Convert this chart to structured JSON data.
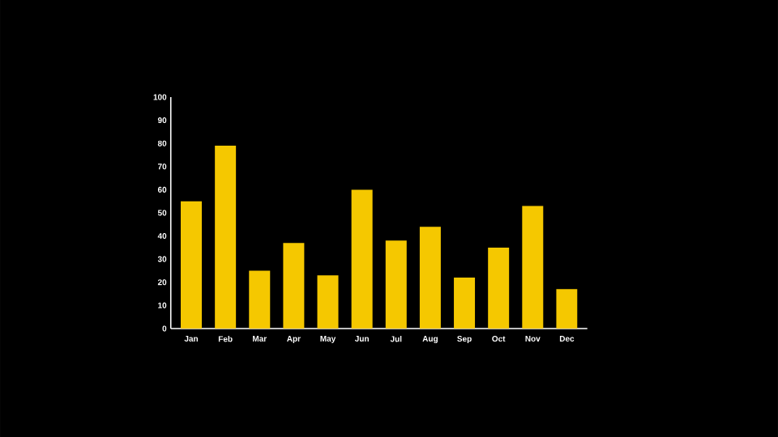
{
  "chart_data": {
    "type": "bar",
    "categories": [
      "Jan",
      "Feb",
      "Mar",
      "Apr",
      "May",
      "Jun",
      "Jul",
      "Aug",
      "Sep",
      "Oct",
      "Nov",
      "Dec"
    ],
    "values": [
      55,
      79,
      25,
      37,
      23,
      60,
      38,
      44,
      22,
      35,
      53,
      17
    ],
    "color": "#f5c800",
    "ylim": [
      0,
      100
    ],
    "yticks": [
      0,
      10,
      20,
      30,
      40,
      50,
      60,
      70,
      80,
      90,
      100
    ],
    "grid": false
  }
}
